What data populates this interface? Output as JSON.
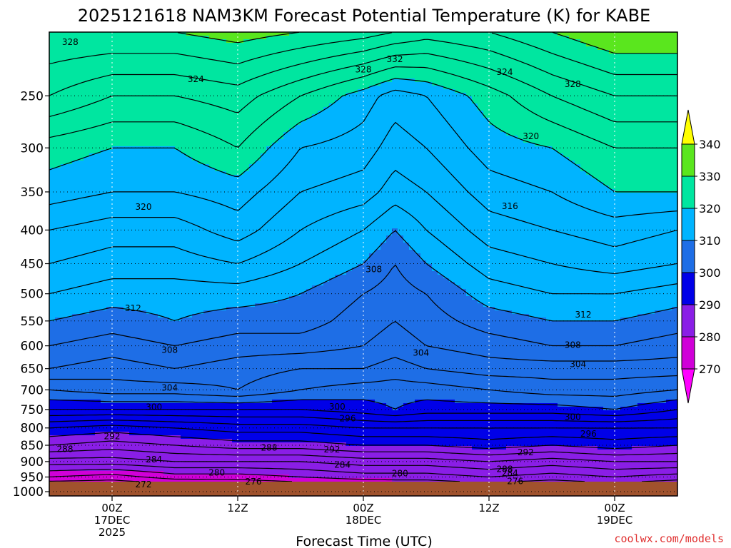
{
  "chart_data": {
    "type": "contour",
    "title": "2025121618 NAM3KM Forecast Potential Temperature (K) for KABE",
    "xlabel": "Forecast Time (UTC)",
    "ylabel": "Pressure (hPa)",
    "y_ticks": [
      "250",
      "300",
      "350",
      "400",
      "450",
      "500",
      "550",
      "600",
      "650",
      "700",
      "750",
      "800",
      "850",
      "900",
      "950",
      "1000"
    ],
    "y_tick_values": [
      250,
      300,
      350,
      400,
      450,
      500,
      550,
      600,
      650,
      700,
      750,
      800,
      850,
      900,
      950,
      1000
    ],
    "ylim": [
      1015,
      200
    ],
    "xlim_hours": [
      -6,
      54
    ],
    "x_ticks": [
      {
        "hours": 0,
        "lines": [
          "00Z",
          "17DEC",
          "2025"
        ]
      },
      {
        "hours": 12,
        "lines": [
          "12Z"
        ]
      },
      {
        "hours": 24,
        "lines": [
          "00Z",
          "18DEC"
        ]
      },
      {
        "hours": 36,
        "lines": [
          "12Z"
        ]
      },
      {
        "hours": 48,
        "lines": [
          "00Z",
          "19DEC"
        ]
      }
    ],
    "colorbar": {
      "levels": [
        270,
        280,
        290,
        300,
        310,
        320,
        330,
        340
      ],
      "labels": [
        "270",
        "280",
        "290",
        "300",
        "310",
        "320",
        "330",
        "340"
      ],
      "colors": [
        "#ff00ff",
        "#d000d8",
        "#8a1ee6",
        "#0000e8",
        "#1e6ee6",
        "#00b4ff",
        "#00e6a0",
        "#5ae61e",
        "#ffff00"
      ]
    },
    "contour_interval": 2,
    "theta_profiles": {
      "hours": [
        -6,
        0,
        6,
        12,
        18,
        24,
        27,
        30,
        36,
        42,
        48,
        54
      ],
      "p_levels": [
        1000,
        950,
        900,
        850,
        800,
        750,
        700,
        650,
        600,
        550,
        500,
        450,
        400,
        350,
        300,
        250,
        200
      ],
      "theta": [
        [
          271,
          278,
          283,
          288,
          292,
          298,
          302,
          306,
          308,
          310,
          312,
          314,
          316,
          319,
          321,
          326,
          330
        ],
        [
          272,
          277,
          283,
          287,
          291,
          298,
          303,
          305,
          307,
          309,
          311,
          313,
          315,
          318,
          320,
          324,
          330
        ],
        [
          272,
          279,
          284,
          288,
          292,
          298,
          303,
          306,
          308,
          310,
          311,
          313,
          315,
          318,
          320,
          324,
          330
        ],
        [
          273,
          279,
          284,
          289,
          293,
          298,
          304,
          305,
          307,
          309,
          311,
          314,
          317,
          319,
          322,
          325,
          331
        ],
        [
          274,
          280,
          284,
          289,
          293,
          298,
          302,
          304,
          307,
          309,
          310,
          312,
          314,
          316,
          318,
          322,
          330
        ],
        [
          275,
          281,
          285,
          290,
          294,
          299,
          301,
          304,
          306,
          307,
          308,
          310,
          312,
          315,
          317,
          319,
          329
        ],
        [
          276,
          281,
          285,
          290,
          294,
          300,
          301,
          303,
          305,
          306,
          307,
          308,
          310,
          313,
          315,
          317,
          328
        ],
        [
          276,
          281,
          285,
          290,
          294,
          299,
          301,
          304,
          306,
          307,
          308,
          310,
          312,
          314,
          316,
          318,
          327
        ],
        [
          277,
          282,
          286,
          291,
          294,
          299,
          302,
          305,
          307,
          309,
          311,
          313,
          315,
          317,
          319,
          321,
          328
        ],
        [
          276,
          281,
          285,
          290,
          294,
          299,
          303,
          305,
          308,
          310,
          312,
          314,
          316,
          318,
          320,
          324,
          330
        ],
        [
          277,
          282,
          286,
          291,
          294,
          300,
          303,
          305,
          308,
          310,
          312,
          315,
          317,
          320,
          322,
          326,
          332
        ],
        [
          276,
          281,
          286,
          290,
          294,
          298,
          302,
          305,
          307,
          309,
          311,
          314,
          316,
          320,
          322,
          326,
          332
        ]
      ]
    },
    "contour_labels": [
      {
        "text": "328",
        "hours": -4,
        "p": 207
      },
      {
        "text": "332",
        "hours": 27,
        "p": 220
      },
      {
        "text": "328",
        "hours": 24,
        "p": 228
      },
      {
        "text": "324",
        "hours": 8,
        "p": 236
      },
      {
        "text": "324",
        "hours": 37.5,
        "p": 230
      },
      {
        "text": "328",
        "hours": 44,
        "p": 240
      },
      {
        "text": "320",
        "hours": 40,
        "p": 288
      },
      {
        "text": "320",
        "hours": 3,
        "p": 369
      },
      {
        "text": "316",
        "hours": 38,
        "p": 368
      },
      {
        "text": "308",
        "hours": 25,
        "p": 459
      },
      {
        "text": "312",
        "hours": 2,
        "p": 526
      },
      {
        "text": "312",
        "hours": 45,
        "p": 538
      },
      {
        "text": "308",
        "hours": 5.5,
        "p": 609
      },
      {
        "text": "308",
        "hours": 44,
        "p": 598
      },
      {
        "text": "304",
        "hours": 29.5,
        "p": 615
      },
      {
        "text": "304",
        "hours": 44.5,
        "p": 640
      },
      {
        "text": "304",
        "hours": 5.5,
        "p": 695
      },
      {
        "text": "300",
        "hours": 4,
        "p": 744
      },
      {
        "text": "300",
        "hours": 21.5,
        "p": 743
      },
      {
        "text": "300",
        "hours": 44,
        "p": 770
      },
      {
        "text": "296",
        "hours": 22.5,
        "p": 774
      },
      {
        "text": "296",
        "hours": 45.5,
        "p": 817
      },
      {
        "text": "292",
        "hours": 0,
        "p": 824
      },
      {
        "text": "292",
        "hours": 39.5,
        "p": 871
      },
      {
        "text": "292",
        "hours": 21,
        "p": 863
      },
      {
        "text": "288",
        "hours": -4.5,
        "p": 862
      },
      {
        "text": "288",
        "hours": 15,
        "p": 857
      },
      {
        "text": "288",
        "hours": 37.5,
        "p": 924
      },
      {
        "text": "284",
        "hours": 4,
        "p": 893
      },
      {
        "text": "284",
        "hours": 22,
        "p": 910
      },
      {
        "text": "284",
        "hours": 38,
        "p": 937
      },
      {
        "text": "280",
        "hours": 10,
        "p": 936
      },
      {
        "text": "280",
        "hours": 27.5,
        "p": 938
      },
      {
        "text": "276",
        "hours": 13.5,
        "p": 965
      },
      {
        "text": "276",
        "hours": 38.5,
        "p": 964
      },
      {
        "text": "272",
        "hours": 3,
        "p": 975
      }
    ]
  },
  "credit": "coolwx.com/models"
}
